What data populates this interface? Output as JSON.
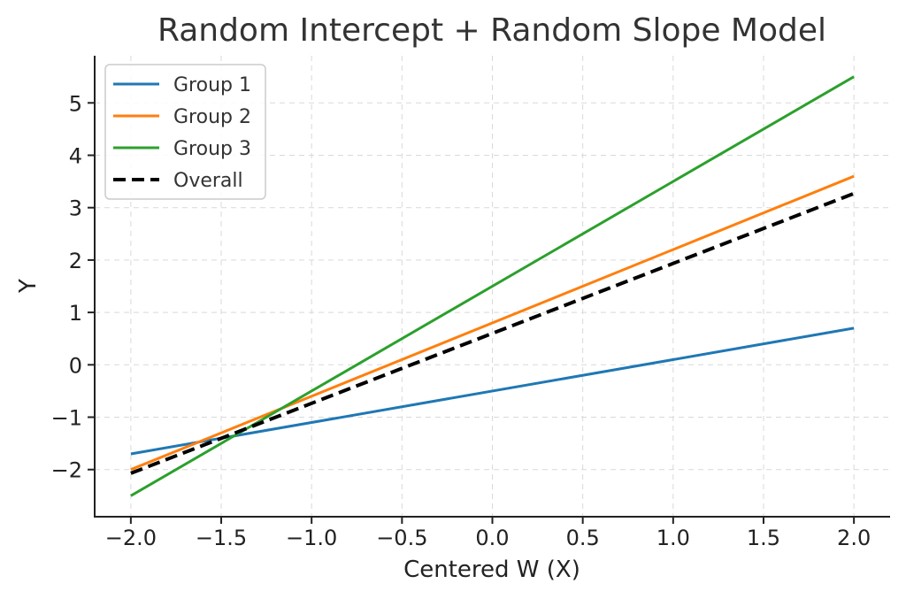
{
  "chart_data": {
    "type": "line",
    "title": "Random Intercept + Random Slope Model",
    "xlabel": "Centered W (X)",
    "ylabel": "Y",
    "xlim": [
      -2.2,
      2.2
    ],
    "ylim": [
      -2.9,
      5.9
    ],
    "xticks": [
      -2.0,
      -1.5,
      -1.0,
      -0.5,
      0.0,
      0.5,
      1.0,
      1.5,
      2.0
    ],
    "xtick_labels": [
      "−2.0",
      "−1.5",
      "−1.0",
      "−0.5",
      "0.0",
      "0.5",
      "1.0",
      "1.5",
      "2.0"
    ],
    "yticks": [
      -2,
      -1,
      0,
      1,
      2,
      3,
      4,
      5
    ],
    "ytick_labels": [
      "−2",
      "−1",
      "0",
      "1",
      "2",
      "3",
      "4",
      "5"
    ],
    "grid": true,
    "legend_position": "top-left",
    "series": [
      {
        "name": "Group 1",
        "color": "#1f77b4",
        "style": "solid",
        "x": [
          -2.0,
          2.0
        ],
        "y": [
          -1.7,
          0.7
        ]
      },
      {
        "name": "Group 2",
        "color": "#ff7f0e",
        "style": "solid",
        "x": [
          -2.0,
          2.0
        ],
        "y": [
          -2.0,
          3.6
        ]
      },
      {
        "name": "Group 3",
        "color": "#2ca02c",
        "style": "solid",
        "x": [
          -2.0,
          2.0
        ],
        "y": [
          -2.5,
          5.5
        ]
      },
      {
        "name": "Overall",
        "color": "#000000",
        "style": "dashed",
        "x": [
          -2.0,
          2.0
        ],
        "y": [
          -2.07,
          3.27
        ]
      }
    ]
  }
}
